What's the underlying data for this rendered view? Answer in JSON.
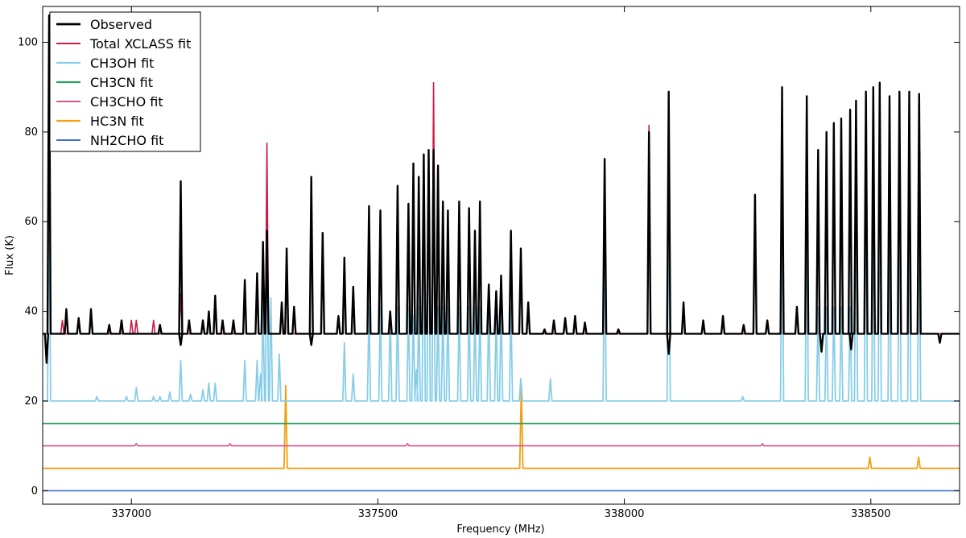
{
  "chart_data": {
    "type": "line",
    "title": "",
    "xlabel": "Frequency (MHz)",
    "ylabel": "Flux (K)",
    "xlim": [
      336820,
      338680
    ],
    "ylim": [
      -3,
      108
    ],
    "xticks": [
      337000,
      337500,
      338000,
      338500
    ],
    "yticks": [
      0,
      20,
      40,
      60,
      80,
      100
    ],
    "grid": false,
    "legend": "top-left",
    "series": [
      {
        "name": "Observed",
        "color": "#000000",
        "width": 2.4,
        "baseline": 35,
        "dips": [
          [
            336828,
            28.5
          ],
          [
            337100,
            32.5
          ],
          [
            337365,
            32.5
          ],
          [
            338090,
            30.5
          ],
          [
            338400,
            31
          ],
          [
            338460,
            31.5
          ],
          [
            338640,
            33
          ]
        ],
        "peaks": [
          [
            336833,
            106
          ],
          [
            336868,
            40.5
          ],
          [
            336893,
            38.5
          ],
          [
            336918,
            40.5
          ],
          [
            336955,
            37
          ],
          [
            336980,
            38
          ],
          [
            337058,
            37
          ],
          [
            337100,
            69
          ],
          [
            337117,
            38
          ],
          [
            337145,
            38
          ],
          [
            337157,
            40
          ],
          [
            337170,
            43.5
          ],
          [
            337185,
            38
          ],
          [
            337207,
            38
          ],
          [
            337230,
            47
          ],
          [
            337255,
            48.5
          ],
          [
            337267,
            55.5
          ],
          [
            337275,
            58
          ],
          [
            337305,
            42
          ],
          [
            337315,
            54
          ],
          [
            337330,
            41
          ],
          [
            337365,
            70
          ],
          [
            337388,
            57.5
          ],
          [
            337420,
            39
          ],
          [
            337432,
            52
          ],
          [
            337450,
            45.5
          ],
          [
            337482,
            63.5
          ],
          [
            337505,
            62.5
          ],
          [
            337525,
            40
          ],
          [
            337540,
            68
          ],
          [
            337562,
            64
          ],
          [
            337572,
            73
          ],
          [
            337583,
            70
          ],
          [
            337593,
            75
          ],
          [
            337603,
            76
          ],
          [
            337613,
            76
          ],
          [
            337622,
            72.5
          ],
          [
            337632,
            64.5
          ],
          [
            337642,
            62.5
          ],
          [
            337665,
            64.5
          ],
          [
            337685,
            63
          ],
          [
            337697,
            58
          ],
          [
            337707,
            64.5
          ],
          [
            337725,
            46
          ],
          [
            337740,
            44.5
          ],
          [
            337750,
            48
          ],
          [
            337770,
            58
          ],
          [
            337790,
            54
          ],
          [
            337805,
            42
          ],
          [
            337838,
            36
          ],
          [
            337857,
            38
          ],
          [
            337880,
            38.5
          ],
          [
            337900,
            39
          ],
          [
            337920,
            37.5
          ],
          [
            337960,
            74
          ],
          [
            337988,
            36
          ],
          [
            338050,
            80
          ],
          [
            338090,
            89
          ],
          [
            338120,
            42
          ],
          [
            338160,
            38
          ],
          [
            338200,
            39
          ],
          [
            338242,
            37
          ],
          [
            338265,
            66
          ],
          [
            338290,
            38
          ],
          [
            338320,
            90
          ],
          [
            338350,
            41
          ],
          [
            338370,
            88
          ],
          [
            338393,
            76
          ],
          [
            338410,
            80
          ],
          [
            338425,
            82
          ],
          [
            338440,
            83
          ],
          [
            338458,
            85
          ],
          [
            338470,
            87
          ],
          [
            338490,
            89
          ],
          [
            338505,
            90
          ],
          [
            338518,
            91
          ],
          [
            338538,
            88
          ],
          [
            338558,
            89
          ],
          [
            338578,
            89
          ],
          [
            338598,
            88.5
          ]
        ]
      },
      {
        "name": "Total XCLASS fit",
        "color": "#cc1a44",
        "width": 1.6,
        "baseline": 35,
        "dips": [],
        "peaks": [
          [
            336833,
            84
          ],
          [
            336860,
            38
          ],
          [
            336893,
            38
          ],
          [
            336918,
            38
          ],
          [
            337000,
            38
          ],
          [
            337010,
            38
          ],
          [
            337045,
            38
          ],
          [
            337100,
            44
          ],
          [
            337145,
            37.5
          ],
          [
            337157,
            40
          ],
          [
            337170,
            41.5
          ],
          [
            337230,
            44
          ],
          [
            337255,
            46
          ],
          [
            337267,
            55.5
          ],
          [
            337275,
            77.5
          ],
          [
            337305,
            41
          ],
          [
            337315,
            54
          ],
          [
            337365,
            68.5
          ],
          [
            337388,
            57
          ],
          [
            337420,
            39
          ],
          [
            337432,
            48
          ],
          [
            337450,
            44.5
          ],
          [
            337482,
            63
          ],
          [
            337505,
            62
          ],
          [
            337540,
            66
          ],
          [
            337562,
            64
          ],
          [
            337572,
            72
          ],
          [
            337583,
            69.5
          ],
          [
            337593,
            75
          ],
          [
            337603,
            76
          ],
          [
            337613,
            91
          ],
          [
            337622,
            72
          ],
          [
            337632,
            64
          ],
          [
            337642,
            62
          ],
          [
            337665,
            64
          ],
          [
            337685,
            62.5
          ],
          [
            337697,
            58
          ],
          [
            337707,
            64
          ],
          [
            337725,
            45
          ],
          [
            337740,
            43.5
          ],
          [
            337750,
            47
          ],
          [
            337770,
            56
          ],
          [
            337790,
            54
          ],
          [
            337805,
            41
          ],
          [
            337880,
            37.5
          ],
          [
            337900,
            38
          ],
          [
            337960,
            73.5
          ],
          [
            338050,
            81.5
          ],
          [
            338090,
            84
          ],
          [
            338120,
            42
          ],
          [
            338160,
            37
          ],
          [
            338200,
            38.5
          ],
          [
            338265,
            65.5
          ],
          [
            338290,
            38
          ],
          [
            338320,
            83
          ],
          [
            338350,
            40
          ],
          [
            338370,
            83
          ],
          [
            338393,
            76
          ],
          [
            338410,
            79
          ],
          [
            338425,
            80
          ],
          [
            338440,
            82
          ],
          [
            338458,
            84
          ],
          [
            338470,
            85
          ],
          [
            338490,
            88
          ],
          [
            338505,
            88
          ],
          [
            338518,
            87
          ],
          [
            338538,
            85
          ],
          [
            338558,
            87
          ],
          [
            338578,
            86
          ],
          [
            338598,
            86
          ]
        ]
      },
      {
        "name": "CH3OH fit",
        "color": "#87cde8",
        "width": 1.8,
        "baseline": 20,
        "dips": [],
        "peaks": [
          [
            336833,
            68.5
          ],
          [
            336930,
            21
          ],
          [
            336990,
            21
          ],
          [
            337010,
            23
          ],
          [
            337045,
            21
          ],
          [
            337058,
            21
          ],
          [
            337078,
            22
          ],
          [
            337100,
            29
          ],
          [
            337120,
            21.5
          ],
          [
            337145,
            22.5
          ],
          [
            337157,
            24
          ],
          [
            337170,
            24
          ],
          [
            337230,
            29
          ],
          [
            337255,
            29
          ],
          [
            337262,
            26
          ],
          [
            337267,
            41
          ],
          [
            337275,
            62
          ],
          [
            337283,
            43
          ],
          [
            337300,
            30.5
          ],
          [
            337432,
            33
          ],
          [
            337450,
            26
          ],
          [
            337482,
            41
          ],
          [
            337505,
            41
          ],
          [
            337525,
            40
          ],
          [
            337540,
            41
          ],
          [
            337562,
            41
          ],
          [
            337572,
            39
          ],
          [
            337578,
            27
          ],
          [
            337583,
            41
          ],
          [
            337593,
            73
          ],
          [
            337603,
            75.5
          ],
          [
            337613,
            76
          ],
          [
            337622,
            41
          ],
          [
            337632,
            41
          ],
          [
            337642,
            41
          ],
          [
            337665,
            41
          ],
          [
            337685,
            41
          ],
          [
            337697,
            41
          ],
          [
            337707,
            41
          ],
          [
            337725,
            41
          ],
          [
            337740,
            41
          ],
          [
            337750,
            41
          ],
          [
            337770,
            41
          ],
          [
            337790,
            25
          ],
          [
            337850,
            25
          ],
          [
            337960,
            59
          ],
          [
            338090,
            67.5
          ],
          [
            338240,
            21
          ],
          [
            338320,
            67.5
          ],
          [
            338370,
            67.5
          ],
          [
            338393,
            41
          ],
          [
            338410,
            41
          ],
          [
            338425,
            41
          ],
          [
            338440,
            41
          ],
          [
            338458,
            41
          ],
          [
            338470,
            67
          ],
          [
            338490,
            67
          ],
          [
            338505,
            67
          ],
          [
            338518,
            67
          ],
          [
            338538,
            67
          ],
          [
            338558,
            66
          ],
          [
            338578,
            67.5
          ],
          [
            338598,
            67
          ]
        ]
      },
      {
        "name": "CH3CN fit",
        "color": "#2ca060",
        "width": 1.8,
        "baseline": 15,
        "dips": [],
        "peaks": []
      },
      {
        "name": "CH3CHO fit",
        "color": "#d9538c",
        "width": 1.6,
        "baseline": 10,
        "dips": [],
        "peaks": [
          [
            337010,
            10.5
          ],
          [
            337200,
            10.5
          ],
          [
            337560,
            10.5
          ],
          [
            338280,
            10.5
          ]
        ]
      },
      {
        "name": "HC3N fit",
        "color": "#f0a010",
        "width": 1.8,
        "baseline": 5,
        "dips": [],
        "peaks": [
          [
            337313,
            23.5
          ],
          [
            337791,
            23.5
          ],
          [
            338498,
            7.5
          ],
          [
            338597,
            7.5
          ]
        ]
      },
      {
        "name": "NH2CHO fit",
        "color": "#3b6fd6",
        "width": 1.6,
        "baseline": 0,
        "dips": [],
        "peaks": []
      }
    ]
  }
}
